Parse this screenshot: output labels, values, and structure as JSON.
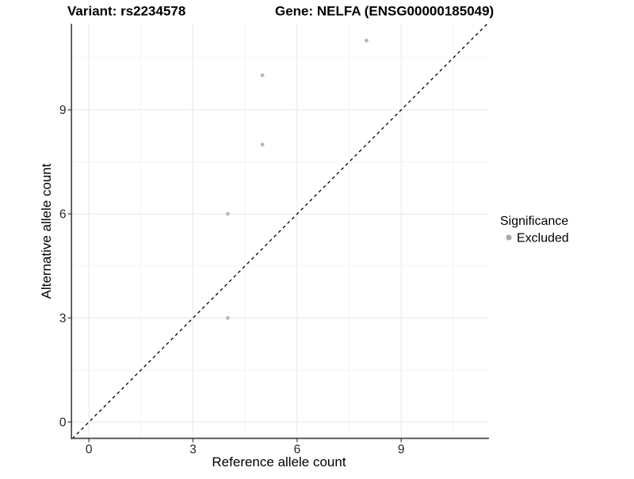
{
  "header": {
    "variant_title": "Variant: rs2234578",
    "gene_title": "Gene: NELFA (ENSG00000185049)"
  },
  "chart_data": {
    "type": "scatter",
    "title": "Variant: rs2234578 | Gene: NELFA (ENSG00000185049)",
    "xlabel": "Reference allele count",
    "ylabel": "Alternative allele count",
    "xlim": [
      -0.5,
      11.5
    ],
    "ylim": [
      -0.5,
      11.5
    ],
    "x_ticks": [
      0,
      3,
      6,
      9
    ],
    "y_ticks": [
      0,
      3,
      6,
      9
    ],
    "x_minor_ticks": [
      1.5,
      4.5,
      7.5,
      10.5
    ],
    "y_minor_ticks": [
      1.5,
      4.5,
      7.5,
      10.5
    ],
    "grid": true,
    "series": [
      {
        "name": "Excluded",
        "color": "#b7b7b7",
        "points": [
          [
            4,
            3
          ],
          [
            4,
            6
          ],
          [
            5,
            8
          ],
          [
            5,
            10
          ],
          [
            8,
            11
          ]
        ]
      }
    ],
    "reference_line": {
      "type": "identity",
      "style": "dashed",
      "color": "#000000"
    },
    "legend": {
      "title": "Significance",
      "position": "right",
      "entries": [
        {
          "label": "Excluded",
          "color": "#a9a9a9"
        }
      ]
    }
  }
}
